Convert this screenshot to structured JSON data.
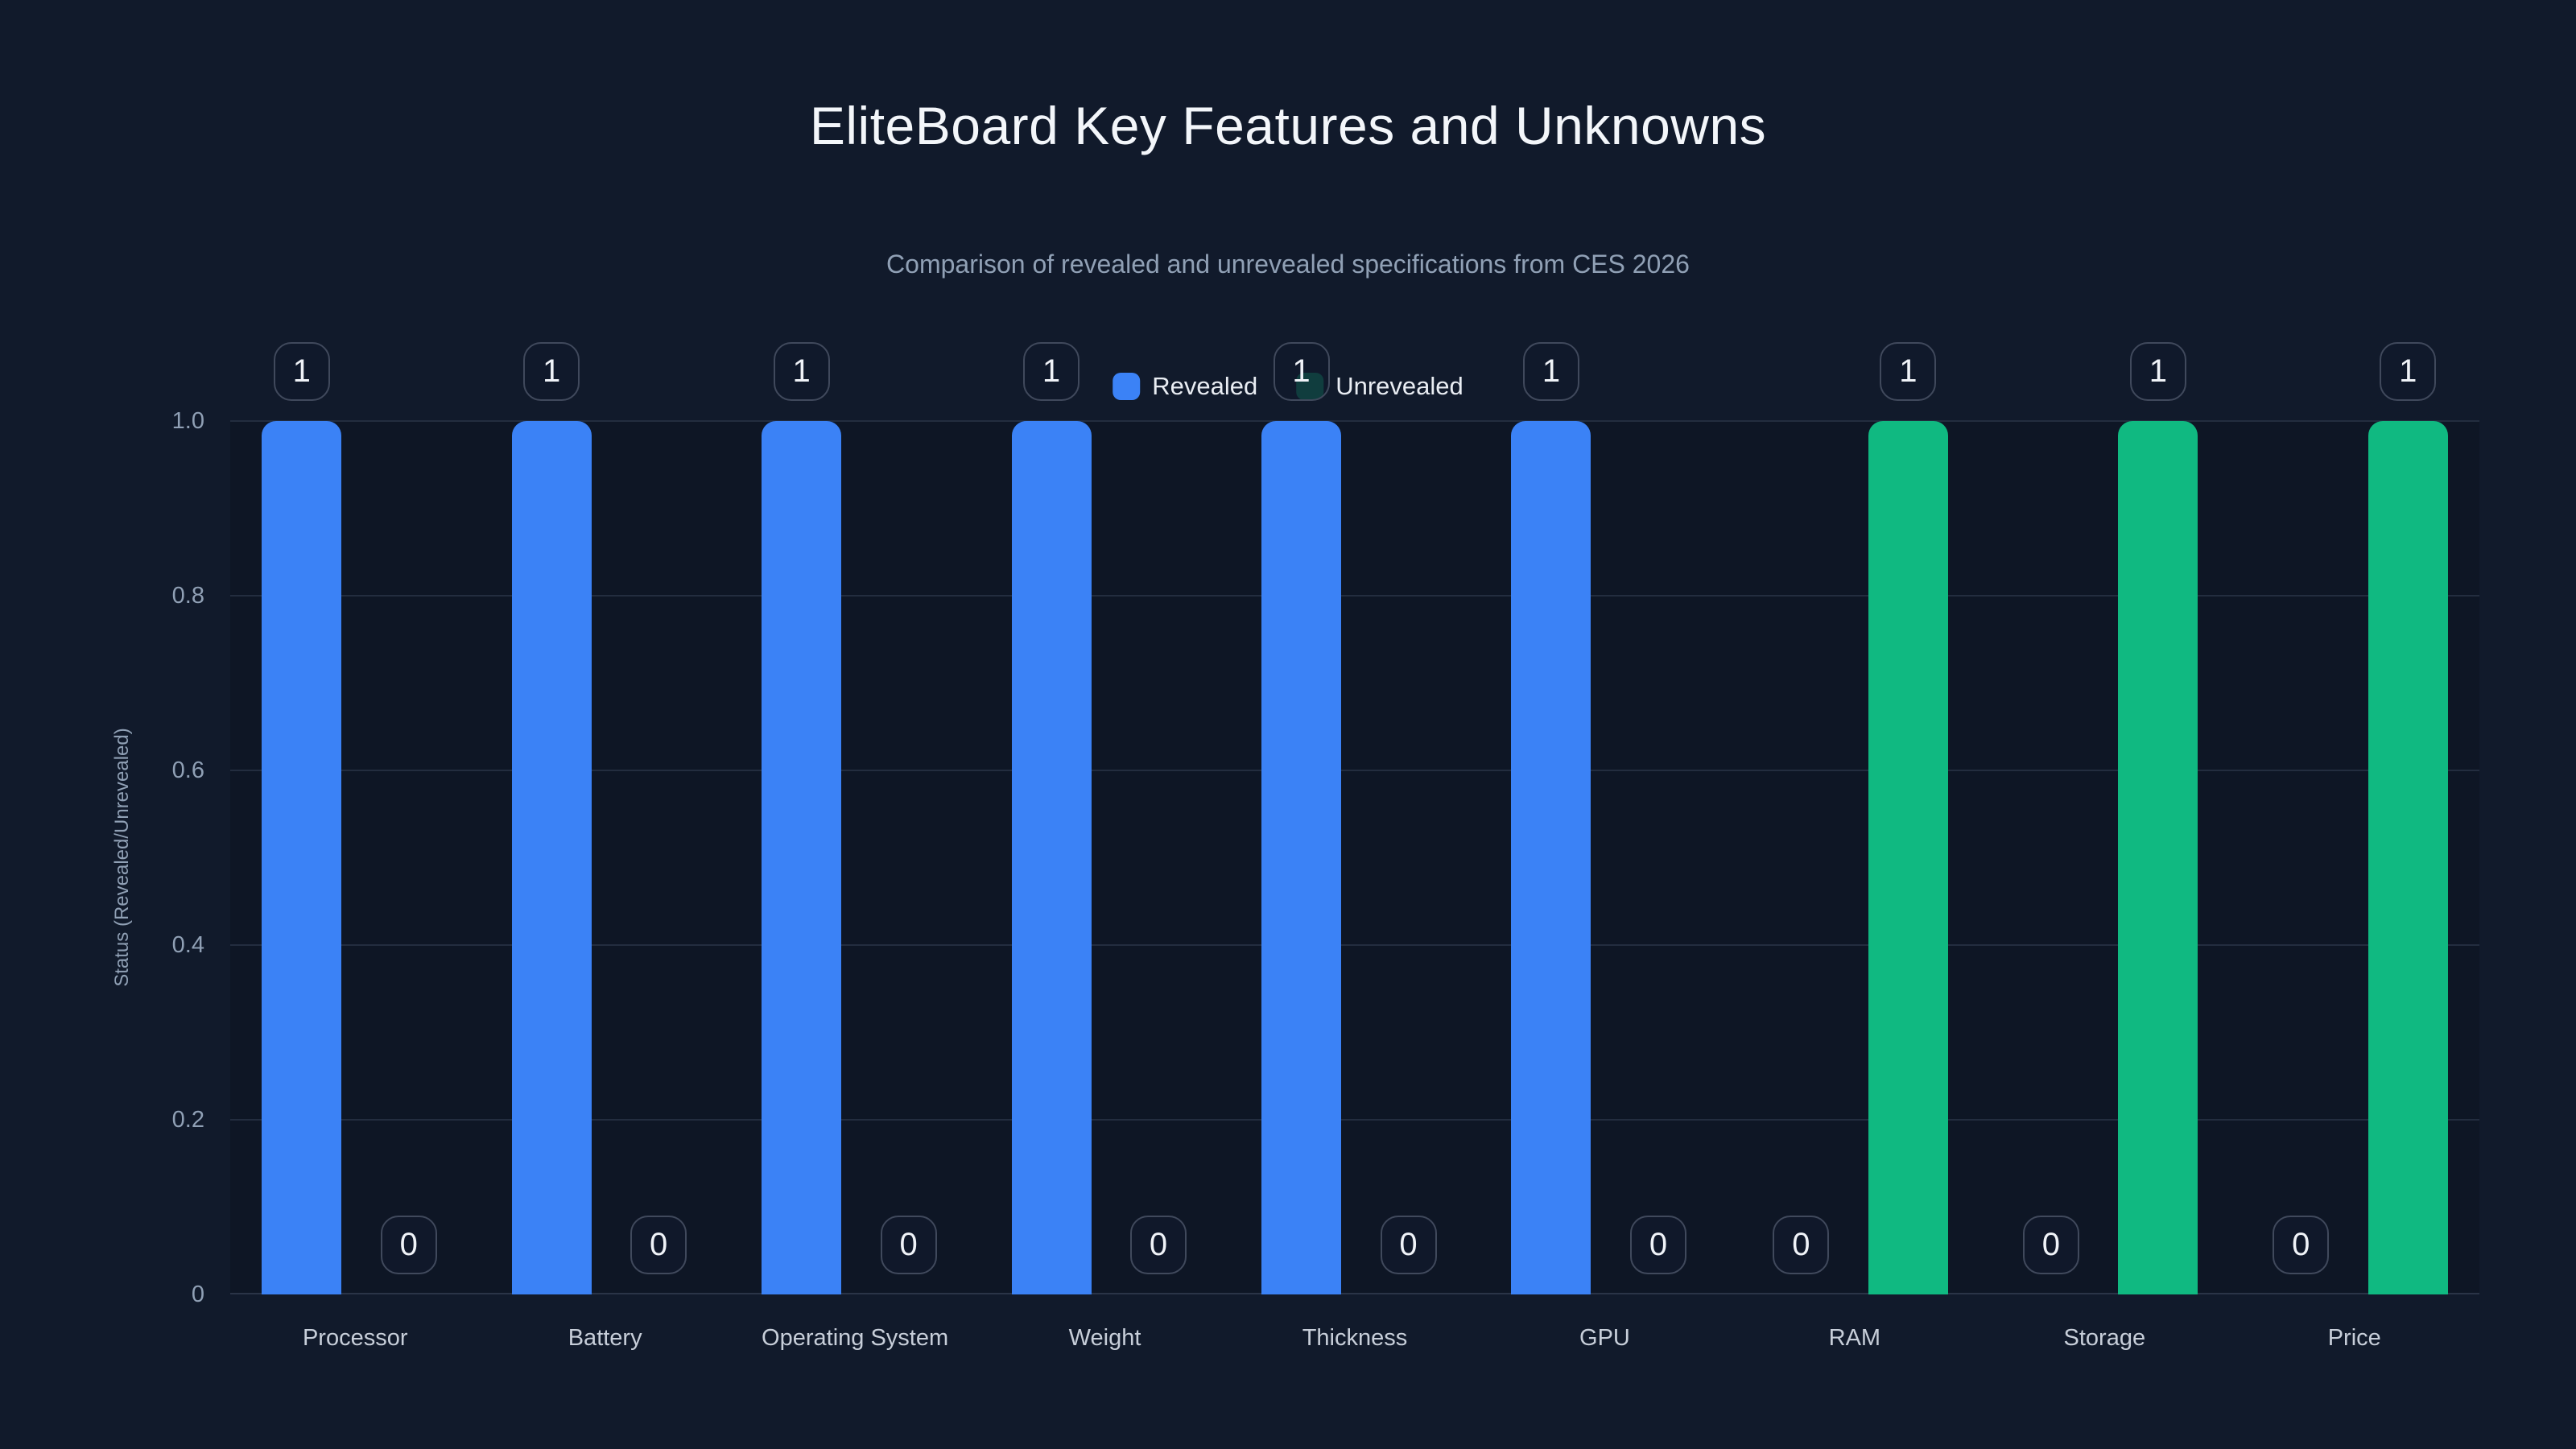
{
  "page": {
    "background": "#111a2b"
  },
  "chart_data": {
    "type": "bar",
    "title": "EliteBoard Key Features and Unknowns",
    "subtitle": "Comparison of revealed and unrevealed specifications from CES 2026",
    "ylabel": "Status (Revealed/Unrevealed)",
    "xlabel": "",
    "categories": [
      "Processor",
      "Battery",
      "Operating System",
      "Weight",
      "Thickness",
      "GPU",
      "RAM",
      "Storage",
      "Price"
    ],
    "series": [
      {
        "name": "Revealed",
        "color": "#3b82f6",
        "values": [
          1,
          1,
          1,
          1,
          1,
          1,
          0,
          0,
          0
        ]
      },
      {
        "name": "Unrevealed",
        "color": "#10b981",
        "values": [
          0,
          0,
          0,
          0,
          0,
          0,
          1,
          1,
          1
        ]
      }
    ],
    "bar_value_labels": [
      {
        "series": "Revealed",
        "labels": [
          "1",
          "1",
          "1",
          "1",
          "1",
          "1",
          "0",
          "0",
          "0"
        ]
      },
      {
        "series": "Unrevealed",
        "labels": [
          "0",
          "0",
          "0",
          "0",
          "0",
          "0",
          "1",
          "1",
          "1"
        ]
      }
    ],
    "ylim": [
      0,
      1
    ],
    "yticks": [
      {
        "label": "1.0",
        "value": 1.0
      },
      {
        "label": "0.8",
        "value": 0.8
      },
      {
        "label": "0.6",
        "value": 0.6
      },
      {
        "label": "0.4",
        "value": 0.4
      },
      {
        "label": "0.2",
        "value": 0.2
      },
      {
        "label": "0",
        "value": 0.0
      }
    ],
    "grid": "horizontal",
    "legend_position": "top-center",
    "colors": {
      "background": "#111a2b",
      "plot_background": "#0e1625",
      "gridline": "#232d3f",
      "axis_text": "#90a0b5",
      "category_text": "#c7ced9",
      "title_text": "#f3f6fa",
      "badge_border": "#40495c",
      "badge_text": "#f0f3f8"
    }
  }
}
